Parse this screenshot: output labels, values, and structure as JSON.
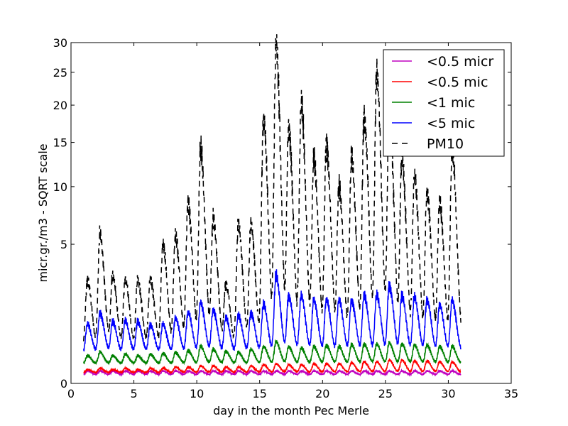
{
  "chart_data": {
    "type": "line",
    "xlabel": "day in the month Pec Merle",
    "ylabel": "micr.gr./m3 - SQRT scale",
    "y_scale": "sqrt",
    "xlim": [
      0,
      35
    ],
    "ylim": [
      0,
      30
    ],
    "x_ticks": [
      "0",
      "5",
      "10",
      "15",
      "20",
      "25",
      "30",
      "35"
    ],
    "y_ticks": [
      "0",
      "5",
      "10",
      "15",
      "20",
      "25",
      "30"
    ],
    "legend": {
      "placement": "top-right"
    },
    "days": [
      1.3,
      2.3,
      3.3,
      4.3,
      5.3,
      6.3,
      7.3,
      8.3,
      9.3,
      10.3,
      11.3,
      12.3,
      13.3,
      14.3,
      15.3,
      16.3,
      17.3,
      18.3,
      19.3,
      20.3,
      21.3,
      22.3,
      23.3,
      24.3,
      25.3,
      26.3,
      27.3,
      28.3,
      29.3,
      30.3
    ],
    "series": [
      {
        "name": "<0.5 micr",
        "color": "#bf00bf",
        "dash": "none",
        "peaks": [
          0.04,
          0.04,
          0.04,
          0.04,
          0.04,
          0.04,
          0.04,
          0.04,
          0.04,
          0.04,
          0.04,
          0.04,
          0.04,
          0.04,
          0.04,
          0.04,
          0.04,
          0.04,
          0.04,
          0.04,
          0.04,
          0.04,
          0.04,
          0.04,
          0.04,
          0.04,
          0.04,
          0.04,
          0.04,
          0.04
        ],
        "base": 0.02
      },
      {
        "name": "<0.5 mic",
        "color": "#ff0000",
        "dash": "none",
        "peaks": [
          0.05,
          0.06,
          0.05,
          0.06,
          0.05,
          0.06,
          0.06,
          0.07,
          0.07,
          0.08,
          0.08,
          0.07,
          0.07,
          0.08,
          0.09,
          0.1,
          0.09,
          0.09,
          0.1,
          0.1,
          0.1,
          0.11,
          0.12,
          0.12,
          0.14,
          0.14,
          0.13,
          0.13,
          0.12,
          0.12
        ],
        "base": 0.03
      },
      {
        "name": "<1 mic",
        "color": "#008000",
        "dash": "none",
        "peaks": [
          0.2,
          0.25,
          0.2,
          0.22,
          0.2,
          0.22,
          0.23,
          0.25,
          0.28,
          0.35,
          0.3,
          0.27,
          0.25,
          0.3,
          0.35,
          0.45,
          0.35,
          0.32,
          0.35,
          0.38,
          0.35,
          0.38,
          0.4,
          0.4,
          0.42,
          0.4,
          0.38,
          0.38,
          0.35,
          0.35
        ],
        "base": 0.1
      },
      {
        "name": "<5 mic",
        "color": "#0000ff",
        "dash": "none",
        "peaks": [
          0.9,
          1.3,
          1.0,
          1.0,
          1.0,
          0.9,
          0.9,
          1.1,
          1.3,
          1.7,
          1.4,
          1.1,
          1.2,
          1.3,
          1.6,
          3.0,
          2.0,
          2.0,
          1.8,
          1.8,
          1.8,
          1.8,
          2.0,
          2.0,
          2.5,
          2.0,
          1.9,
          1.8,
          1.6,
          1.8
        ],
        "base": 0.25
      },
      {
        "name": "PM10",
        "color": "#000000",
        "dash": "8,6",
        "peaks": [
          2.8,
          5.7,
          3.0,
          2.8,
          2.8,
          2.8,
          4.9,
          5.7,
          8.5,
          14.0,
          7.0,
          2.6,
          6.5,
          6.5,
          18.0,
          30.0,
          17.0,
          20.0,
          13.0,
          15.0,
          10.0,
          13.0,
          18.5,
          25.0,
          20.0,
          13.0,
          11.0,
          9.5,
          8.5,
          14.0
        ],
        "base": 0.35
      }
    ]
  }
}
